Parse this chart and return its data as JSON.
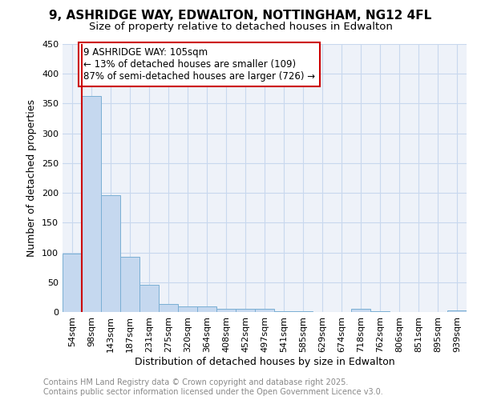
{
  "title_line1": "9, ASHRIDGE WAY, EDWALTON, NOTTINGHAM, NG12 4FL",
  "title_line2": "Size of property relative to detached houses in Edwalton",
  "xlabel": "Distribution of detached houses by size in Edwalton",
  "ylabel": "Number of detached properties",
  "categories": [
    "54sqm",
    "98sqm",
    "143sqm",
    "187sqm",
    "231sqm",
    "275sqm",
    "320sqm",
    "364sqm",
    "408sqm",
    "452sqm",
    "497sqm",
    "541sqm",
    "585sqm",
    "629sqm",
    "674sqm",
    "718sqm",
    "762sqm",
    "806sqm",
    "851sqm",
    "895sqm",
    "939sqm"
  ],
  "values": [
    98,
    363,
    196,
    93,
    46,
    14,
    10,
    9,
    6,
    5,
    5,
    1,
    1,
    0,
    0,
    5,
    1,
    0,
    0,
    0,
    3
  ],
  "bar_color": "#c5d8ef",
  "bar_edge_color": "#7aafd4",
  "vline_color": "#cc0000",
  "annotation_text": "9 ASHRIDGE WAY: 105sqm\n← 13% of detached houses are smaller (109)\n87% of semi-detached houses are larger (726) →",
  "annotation_box_color": "#cc0000",
  "ylim": [
    0,
    450
  ],
  "yticks": [
    0,
    50,
    100,
    150,
    200,
    250,
    300,
    350,
    400,
    450
  ],
  "background_color": "#eef2f9",
  "grid_color": "#c8d8ee",
  "footer_line1": "Contains HM Land Registry data © Crown copyright and database right 2025.",
  "footer_line2": "Contains public sector information licensed under the Open Government Licence v3.0.",
  "footer_color": "#888888",
  "title_fontsize": 11,
  "subtitle_fontsize": 9.5,
  "axis_label_fontsize": 9,
  "tick_fontsize": 8,
  "annotation_fontsize": 8.5,
  "footer_fontsize": 7
}
